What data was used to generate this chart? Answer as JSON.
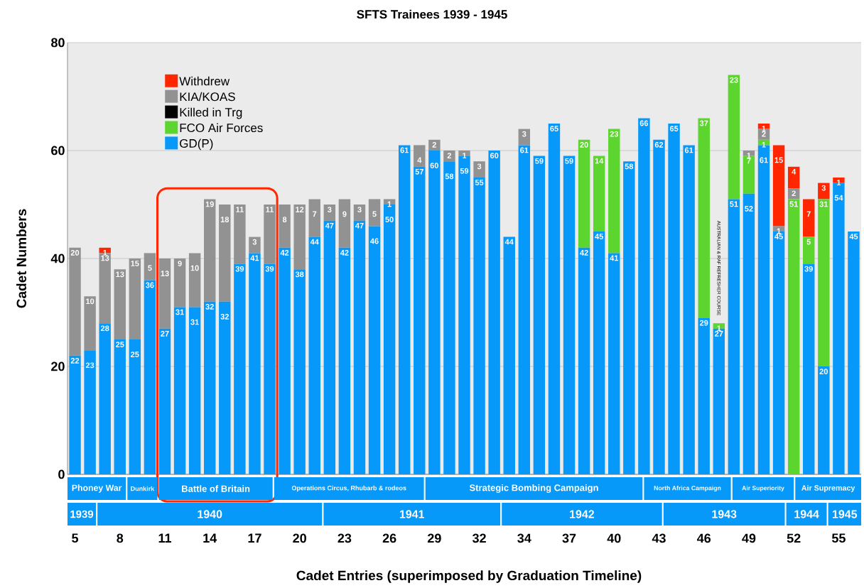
{
  "chart_data": {
    "type": "bar",
    "stacked": true,
    "title": "SFTS Trainees 1939 - 1945",
    "xlabel": "Cadet Entries (superimposed by Graduation Timeline)",
    "ylabel": "Cadet Numbers",
    "categories": [
      "5",
      null,
      null,
      "8",
      null,
      null,
      "11",
      null,
      null,
      "14",
      null,
      null,
      "17",
      null,
      null,
      "20",
      null,
      null,
      "23",
      null,
      null,
      "26",
      null,
      null,
      "29",
      null,
      null,
      "32",
      null,
      null,
      "34",
      null,
      null,
      "37",
      null,
      null,
      "40",
      null,
      null,
      "43",
      null,
      null,
      "46",
      null,
      null,
      "49",
      null,
      null,
      "52",
      null,
      null,
      "55",
      null
    ],
    "series": [
      {
        "name": "GD(P)",
        "color": "#0699fa",
        "values": [
          22,
          23,
          28,
          25,
          25,
          36,
          27,
          31,
          31,
          32,
          32,
          39,
          41,
          39,
          42,
          38,
          44,
          47,
          42,
          47,
          46,
          50,
          61,
          57,
          60,
          58,
          59,
          55,
          60,
          44,
          61,
          59,
          65,
          59,
          42,
          45,
          41,
          58,
          66,
          62,
          65,
          61,
          29,
          27,
          51,
          52,
          61,
          45,
          null,
          39,
          20,
          54,
          45
        ]
      },
      {
        "name": "FCO Air Forces",
        "color": "#5cd62f",
        "values": [
          null,
          null,
          null,
          null,
          null,
          null,
          null,
          null,
          null,
          null,
          null,
          null,
          null,
          null,
          null,
          null,
          null,
          null,
          null,
          null,
          null,
          null,
          null,
          null,
          null,
          null,
          null,
          null,
          null,
          null,
          null,
          null,
          null,
          null,
          20,
          14,
          23,
          null,
          null,
          null,
          null,
          null,
          37,
          1,
          23,
          7,
          1,
          null,
          51,
          5,
          31,
          null,
          null
        ]
      },
      {
        "name": "Killed in Trg",
        "color": "#000000",
        "values": [
          null,
          null,
          null,
          null,
          null,
          null,
          null,
          null,
          null,
          null,
          null,
          null,
          null,
          null,
          null,
          null,
          null,
          null,
          null,
          null,
          null,
          null,
          null,
          null,
          null,
          null,
          null,
          null,
          null,
          null,
          null,
          null,
          null,
          null,
          null,
          null,
          null,
          null,
          null,
          null,
          null,
          null,
          null,
          null,
          null,
          null,
          null,
          null,
          null,
          null,
          null,
          null,
          null
        ]
      },
      {
        "name": "KIA/KOAS",
        "color": "#929292",
        "values": [
          20,
          10,
          13,
          13,
          15,
          5,
          13,
          9,
          10,
          19,
          18,
          11,
          3,
          11,
          8,
          12,
          7,
          3,
          9,
          3,
          5,
          1,
          null,
          4,
          2,
          2,
          1,
          3,
          null,
          null,
          3,
          null,
          null,
          null,
          null,
          null,
          null,
          null,
          null,
          null,
          null,
          null,
          null,
          null,
          null,
          1,
          2,
          1,
          2,
          null,
          null,
          null,
          null
        ]
      },
      {
        "name": "Withdrew",
        "color": "#ff2600",
        "values": [
          null,
          null,
          1,
          null,
          null,
          null,
          null,
          null,
          null,
          null,
          null,
          null,
          null,
          null,
          null,
          null,
          null,
          null,
          null,
          null,
          null,
          null,
          null,
          null,
          null,
          null,
          null,
          null,
          null,
          null,
          null,
          null,
          null,
          null,
          null,
          null,
          null,
          null,
          null,
          null,
          null,
          null,
          null,
          null,
          null,
          null,
          1,
          15,
          4,
          7,
          3,
          1,
          null
        ]
      }
    ],
    "data_labels": true,
    "ylim": [
      0,
      80
    ],
    "yticks": [
      0,
      20,
      40,
      60,
      80
    ],
    "grid": "y",
    "legend": "top left",
    "annotations": [
      "Phoney War",
      "Dunkirk",
      "Battle of Britain",
      "Operations Circus, Rhubarb & rodeos",
      "Strategic Bombing Campaign",
      "North Africa Campaign",
      "Air Superiority",
      "Air Supremacy",
      "1939",
      "1940",
      "1941",
      "1942",
      "1943",
      "1944",
      "1945",
      "AUSTRALIAN & RAF REFRESHER COURSE"
    ]
  }
}
